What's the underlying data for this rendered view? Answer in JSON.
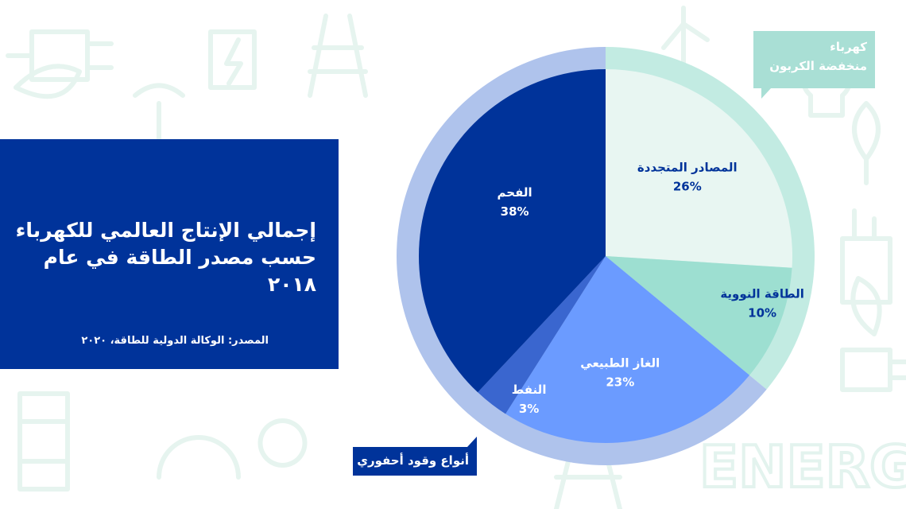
{
  "slide": {
    "title_lines": [
      "إجمالي الإنتاج العالمي للكهرباء",
      "حسب مصدر الطاقة في عام ٢٠١٨"
    ],
    "source": "المصدر: الوكالة الدولية للطاقة، ٢٠٢٠"
  },
  "chart_data": {
    "type": "pie",
    "title": "إجمالي الإنتاج العالمي للكهرباء حسب مصدر الطاقة في عام ٢٠١٨",
    "unit": "%",
    "slices": [
      {
        "label": "المصادر المتجددة",
        "value": 26,
        "value_label": "26%",
        "color": "#e8f6f2",
        "text_color": "#00339a"
      },
      {
        "label": "الطاقة النووية",
        "value": 10,
        "value_label": "10%",
        "color": "#9ddfd1",
        "text_color": "#00339a"
      },
      {
        "label": "الغاز الطبيعي",
        "value": 23,
        "value_label": "23%",
        "color": "#6b9bff",
        "text_color": "#ffffff"
      },
      {
        "label": "النفط",
        "value": 3,
        "value_label": "3%",
        "color": "#3a66cf",
        "text_color": "#ffffff"
      },
      {
        "label": "الفحم",
        "value": 38,
        "value_label": "38%",
        "color": "#00339a",
        "text_color": "#ffffff"
      }
    ],
    "groups": [
      {
        "label_lines": [
          "كهرباء",
          "منخفضة الكربون"
        ],
        "members": [
          "المصادر المتجددة",
          "الطاقة النووية"
        ],
        "ring_color": "#c2ebe2"
      },
      {
        "label_lines": [
          "أنواع وقود أحفوري"
        ],
        "members": [
          "الغاز الطبيعي",
          "النفط",
          "الفحم"
        ],
        "ring_color": "#afc3ec"
      }
    ],
    "start_angle_deg": 0,
    "direction": "clockwise"
  },
  "colors": {
    "panel": "#00339a",
    "background": "#ffffff",
    "doodle": "#e8f5f0"
  }
}
